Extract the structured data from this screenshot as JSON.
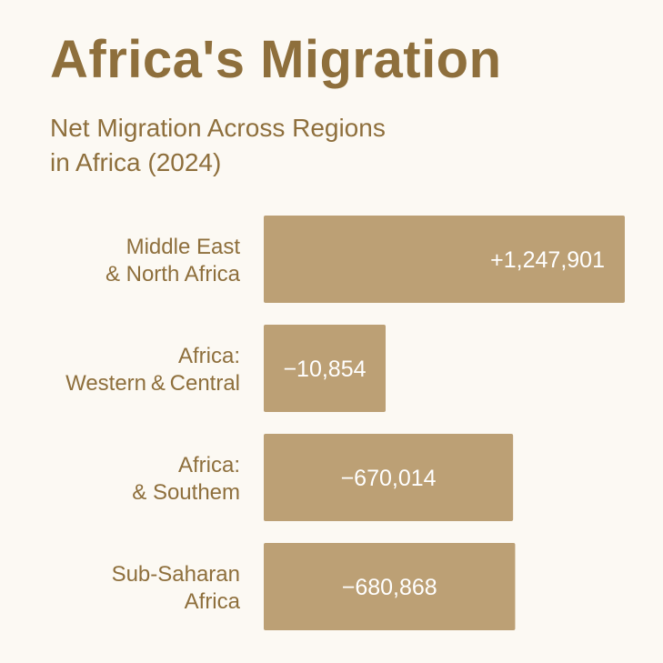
{
  "chart_data": {
    "type": "bar",
    "orientation": "horizontal",
    "title": "Africa's Migration",
    "subtitle_lines": [
      "Net Migration Across Regions",
      "in Africa (2024)"
    ],
    "categories": [
      [
        "Middle East",
        "& North Africa"
      ],
      [
        "Africa:",
        "Western & Central"
      ],
      [
        "Africa:",
        "& Southem"
      ],
      [
        "Sub-Saharan",
        "Africa"
      ]
    ],
    "values": [
      1247901,
      -10854,
      -670014,
      -680868
    ],
    "data_labels": [
      "+1,247,901",
      "−10,854",
      "−670,014",
      "−680,868"
    ],
    "grid": false,
    "legend": "none",
    "colors": {
      "bar": "#bca075",
      "label_text": "#8e6f3c",
      "value_text": "#ffffff",
      "background": "#fcf9f3"
    }
  }
}
